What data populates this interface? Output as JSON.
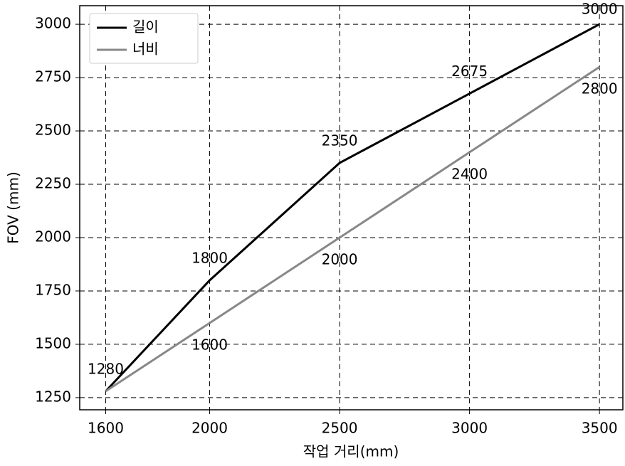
{
  "chart_data": {
    "type": "line",
    "x_label": "작업 거리(mm)",
    "y_label": "FOV (mm)",
    "x": [
      1600,
      2000,
      2500,
      3000,
      3500
    ],
    "series": [
      {
        "name": "길이",
        "color": "#000000",
        "values": [
          1280,
          1800,
          2350,
          2675,
          3000
        ]
      },
      {
        "name": "너비",
        "color": "#888888",
        "values": [
          1280,
          1600,
          2000,
          2400,
          2800
        ]
      }
    ],
    "xlim": [
      1500,
      3590
    ],
    "ylim": [
      1193,
      3087
    ],
    "xticks": [
      1600,
      2000,
      2500,
      3000,
      3500
    ],
    "yticks": [
      1250,
      1500,
      1750,
      2000,
      2250,
      2500,
      2750,
      3000
    ],
    "grid": true,
    "legend": "upper left"
  }
}
